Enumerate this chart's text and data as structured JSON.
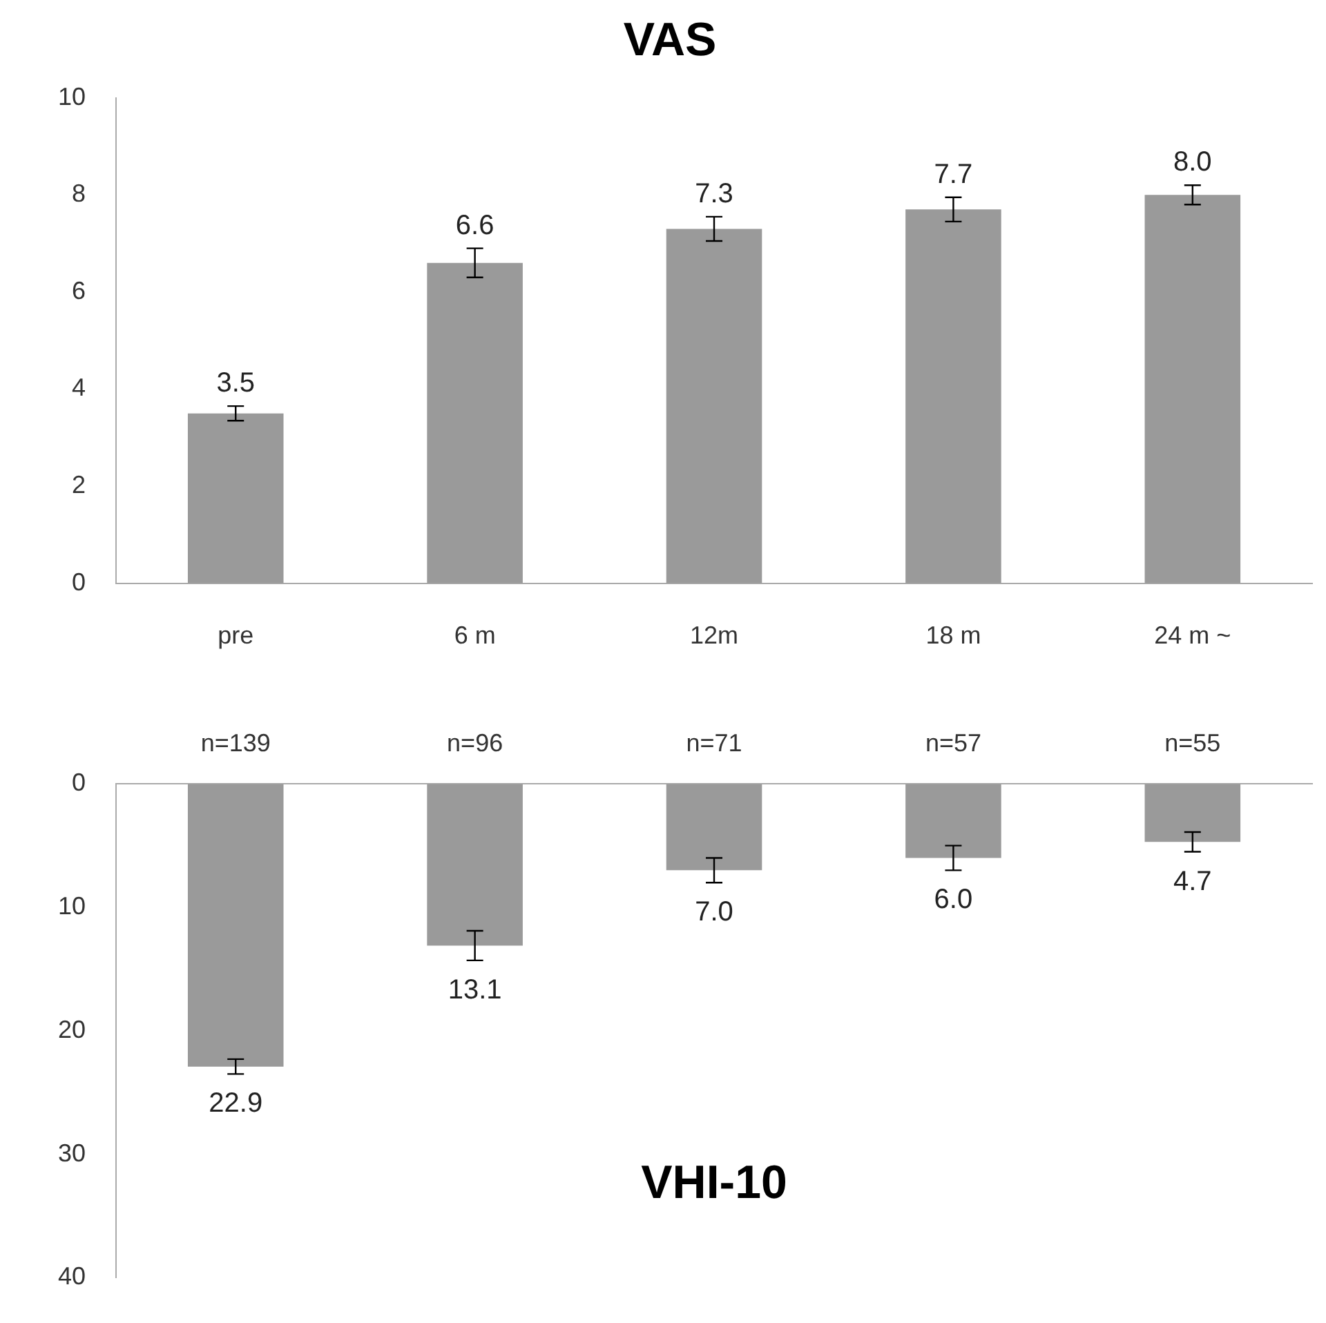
{
  "chart_data": [
    {
      "type": "bar",
      "title": "VAS",
      "categories": [
        "pre",
        "6 m",
        "12m",
        "18 m",
        "24 m ~"
      ],
      "values": [
        3.5,
        6.6,
        7.3,
        7.7,
        8.0
      ],
      "errors": [
        0.15,
        0.3,
        0.25,
        0.25,
        0.2
      ],
      "value_labels": [
        "3.5",
        "6.6",
        "7.3",
        "7.7",
        "8.0"
      ],
      "color": "#9a9a9a",
      "ylim": [
        0,
        10
      ],
      "yticks": [
        0,
        2,
        4,
        6,
        8,
        10
      ],
      "grid": false
    },
    {
      "type": "bar",
      "title": "VHI-10",
      "categories": [
        "n=139",
        "n=96",
        "n=71",
        "n=57",
        "n=55"
      ],
      "values": [
        22.9,
        13.1,
        7.0,
        6.0,
        4.7
      ],
      "errors": [
        0.6,
        1.2,
        1.0,
        1.0,
        0.8
      ],
      "value_labels": [
        "22.9",
        "13.1",
        "7.0",
        "6.0",
        "4.7"
      ],
      "color": "#9a9a9a",
      "ylim": [
        40,
        0
      ],
      "yticks": [
        0,
        10,
        20,
        30,
        40
      ],
      "grid": false
    }
  ]
}
